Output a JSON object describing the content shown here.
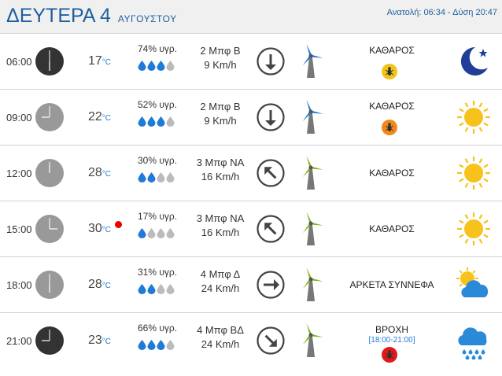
{
  "header": {
    "day": "ΔΕΥΤΕΡΑ 4",
    "month": "ΑΥΓΟΥΣΤΟΥ",
    "sun_times": "Ανατολή: 06:34 - Δύση 20:47"
  },
  "rows": [
    {
      "time": "06:00",
      "temp": "17",
      "unit": "°C",
      "humidity": "74% υγρ.",
      "wind_force": "2 Μπφ Β",
      "wind_speed": "9 Km/h",
      "condition": "ΚΑΘΑΡΟΣ",
      "clock": "dark",
      "drops_filled": 3,
      "arrow": "down",
      "turbine": "blue",
      "badge": "yellow",
      "icon": "moon-icon"
    },
    {
      "time": "09:00",
      "temp": "22",
      "unit": "°C",
      "humidity": "52% υγρ.",
      "wind_force": "2 Μπφ Β",
      "wind_speed": "9 Km/h",
      "condition": "ΚΑΘΑΡΟΣ",
      "clock": "light",
      "drops_filled": 3,
      "arrow": "down",
      "turbine": "blue",
      "badge": "orange",
      "icon": "sun-icon"
    },
    {
      "time": "12:00",
      "temp": "28",
      "unit": "°C",
      "humidity": "30% υγρ.",
      "wind_force": "3 Μπφ ΝΑ",
      "wind_speed": "16 Km/h",
      "condition": "ΚΑΘΑΡΟΣ",
      "clock": "light",
      "drops_filled": 2,
      "arrow": "up-left",
      "turbine": "green",
      "badge": "",
      "icon": "sun-icon"
    },
    {
      "time": "15:00",
      "temp": "30",
      "unit": "°C",
      "humidity": "17% υγρ.",
      "wind_force": "3 Μπφ ΝΑ",
      "wind_speed": "16 Km/h",
      "condition": "ΚΑΘΑΡΟΣ",
      "clock": "light",
      "drops_filled": 1,
      "arrow": "up-left",
      "turbine": "green",
      "badge": "",
      "icon": "sun-icon",
      "hot": true
    },
    {
      "time": "18:00",
      "temp": "28",
      "unit": "°C",
      "humidity": "31% υγρ.",
      "wind_force": "4 Μπφ Δ",
      "wind_speed": "24 Km/h",
      "condition": "ΑΡΚΕΤΑ ΣΥΝΝΕΦΑ",
      "clock": "light",
      "drops_filled": 2,
      "arrow": "right",
      "turbine": "green",
      "badge": "",
      "icon": "partly-cloudy-icon"
    },
    {
      "time": "21:00",
      "temp": "23",
      "unit": "°C",
      "humidity": "66% υγρ.",
      "wind_force": "4 Μπφ ΒΔ",
      "wind_speed": "24 Km/h",
      "condition": "ΒΡΟΧΗ",
      "rain_range": "[18:00-21:00]",
      "clock": "dark",
      "drops_filled": 3,
      "arrow": "down-right",
      "turbine": "green",
      "badge": "red",
      "icon": "rain-cloud-icon"
    }
  ]
}
